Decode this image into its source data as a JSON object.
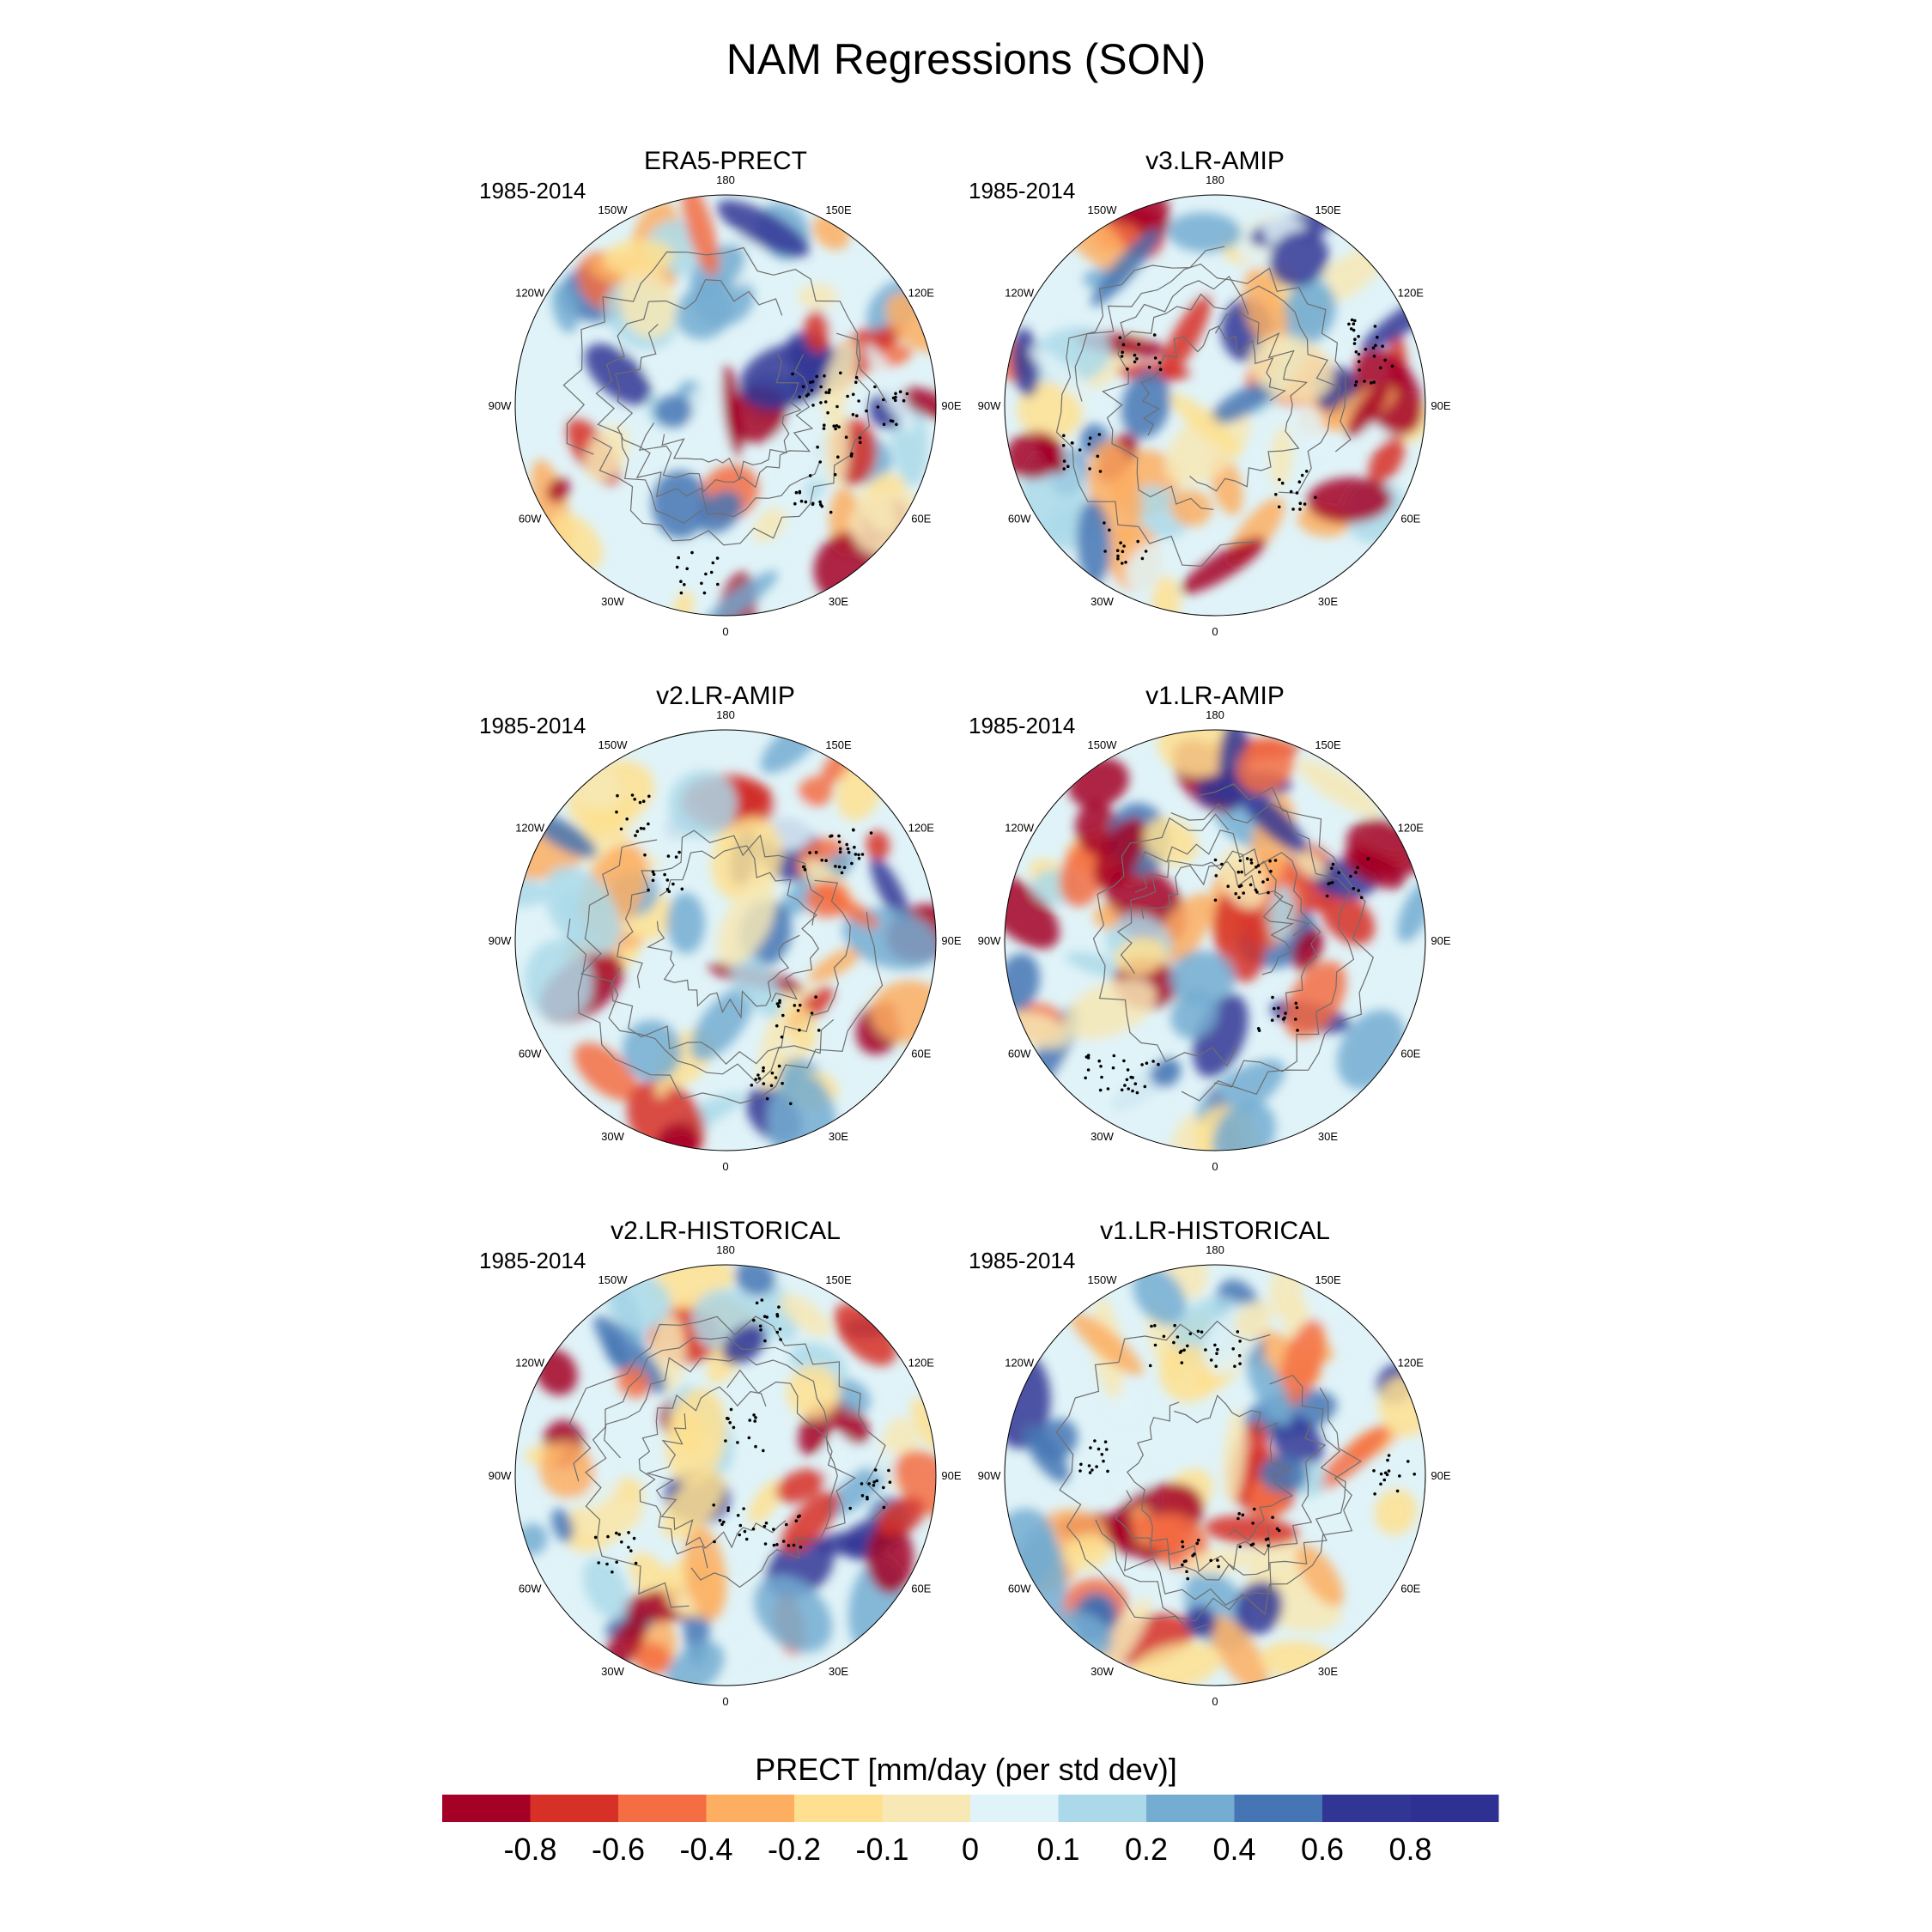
{
  "title": "NAM Regressions (SON)",
  "panels": [
    {
      "title": "ERA5-PRECT",
      "period": "1985-2014"
    },
    {
      "title": "v3.LR-AMIP",
      "period": "1985-2014"
    },
    {
      "title": "v2.LR-AMIP",
      "period": "1985-2014"
    },
    {
      "title": "v1.LR-AMIP",
      "period": "1985-2014"
    },
    {
      "title": "v2.LR-HISTORICAL",
      "period": "1985-2014"
    },
    {
      "title": "v1.LR-HISTORICAL",
      "period": "1985-2014"
    }
  ],
  "lon_labels": [
    "180",
    "150E",
    "120E",
    "90E",
    "60E",
    "30E",
    "0",
    "30W",
    "60W",
    "90W",
    "120W",
    "150W"
  ],
  "colorbar": {
    "title": "PRECT [mm/day (per std dev)]",
    "ticks": [
      "-0.8",
      "-0.6",
      "-0.4",
      "-0.2",
      "-0.1",
      "0",
      "0.1",
      "0.2",
      "0.4",
      "0.6",
      "0.8"
    ],
    "colors": [
      "#a50026",
      "#d73027",
      "#f46d43",
      "#fdae61",
      "#fee090",
      "#f7e8b5",
      "#e0f3f8",
      "#abd9e9",
      "#74add1",
      "#4575b4",
      "#313695",
      "#2e3192"
    ]
  }
}
